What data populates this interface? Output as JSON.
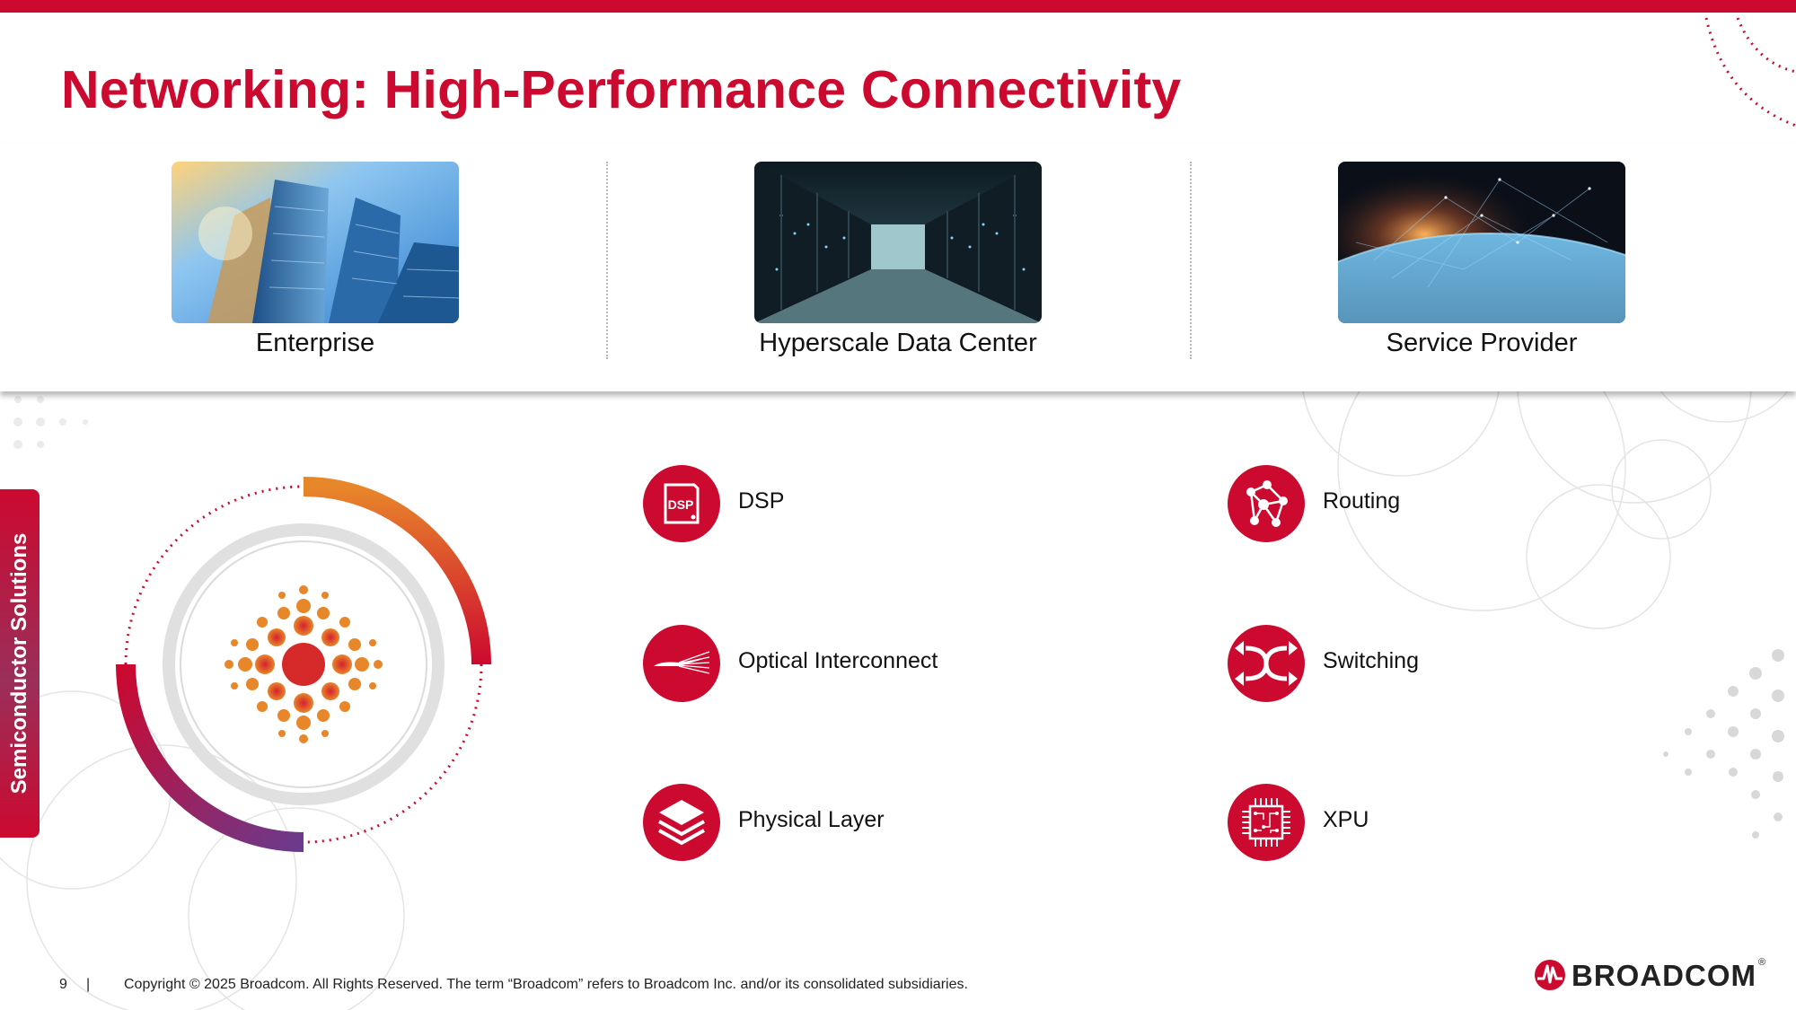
{
  "title": "Networking: High-Performance Connectivity",
  "segments": [
    {
      "label": "Enterprise",
      "image": "skyscrapers-photo"
    },
    {
      "label": "Hyperscale Data Center",
      "image": "server-aisle-photo"
    },
    {
      "label": "Service Provider",
      "image": "globe-network-photo"
    }
  ],
  "side_tab": "Semiconductor Solutions",
  "capabilities": {
    "left": [
      {
        "label": "DSP",
        "icon": "dsp-chip-icon",
        "icon_text": "DSP"
      },
      {
        "label": "Optical Interconnect",
        "icon": "optical-fiber-icon"
      },
      {
        "label": "Physical Layer",
        "icon": "layers-icon"
      }
    ],
    "right": [
      {
        "label": "Routing",
        "icon": "routing-network-icon"
      },
      {
        "label": "Switching",
        "icon": "switching-arrows-icon"
      },
      {
        "label": "XPU",
        "icon": "processor-chip-icon"
      }
    ]
  },
  "footer": {
    "page": "9",
    "separator": "|",
    "copyright": "Copyright © 2025 Broadcom.  All Rights Reserved. The term “Broadcom” refers to Broadcom Inc. and/or its consolidated subsidiaries."
  },
  "logo": {
    "text": "BROADCOM",
    "reg": "®"
  },
  "colors": {
    "brand_red": "#cc092f",
    "orange": "#e8862a",
    "purple": "#6b3a8c",
    "text": "#111111"
  }
}
